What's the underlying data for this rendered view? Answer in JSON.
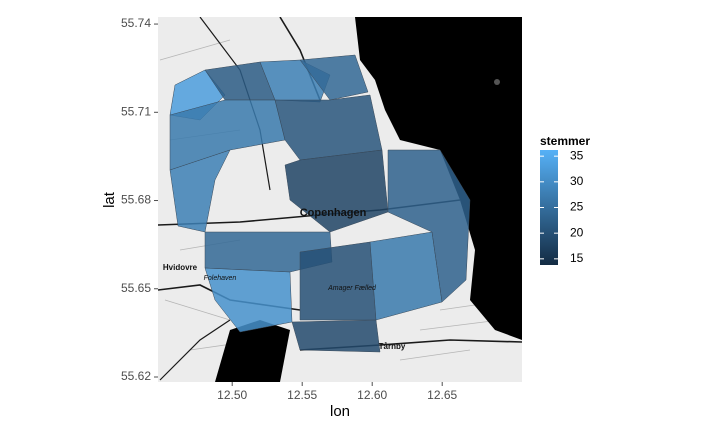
{
  "x_axis": {
    "label": "lon",
    "lim": [
      12.447,
      12.707
    ],
    "ticks": [
      {
        "value": 12.5,
        "label": "12.50"
      },
      {
        "value": 12.55,
        "label": "12.55"
      },
      {
        "value": 12.6,
        "label": "12.60"
      },
      12.65
    ]
  },
  "y_axis": {
    "label": "lat",
    "lim": [
      55.6183,
      55.7424
    ],
    "ticks": [
      55.62,
      55.65,
      55.68,
      55.71,
      55.74
    ]
  },
  "legend": {
    "title": "stemmer",
    "lim": [
      13.8,
      36.2
    ],
    "ticks": [
      15,
      20,
      25,
      30,
      35
    ],
    "low_color": "#132B43",
    "high_color": "#56B1F7"
  },
  "place_labels": [
    "Copenhagen",
    "Hvidovre",
    "Folehaven",
    "Amager Fælled",
    "Tårnby"
  ],
  "districts": {
    "values": [
      33,
      22,
      28,
      24,
      27,
      21,
      28,
      18,
      24,
      31,
      20,
      27,
      23,
      19
    ]
  }
}
